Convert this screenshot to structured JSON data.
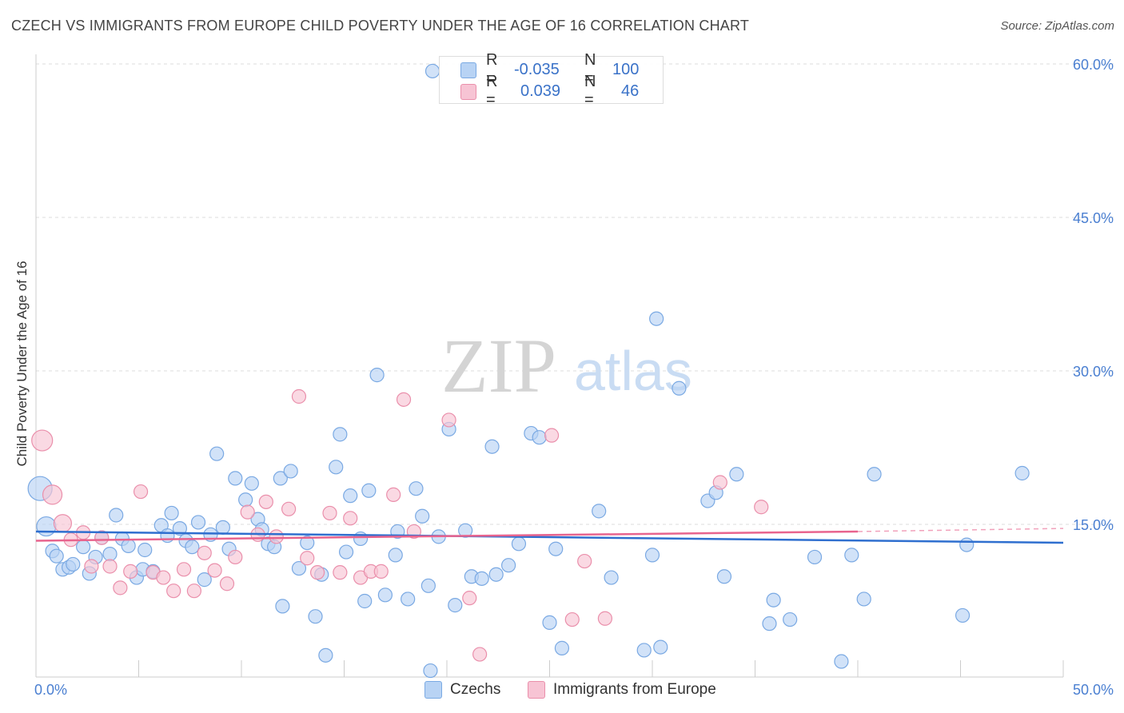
{
  "title": "CZECH VS IMMIGRANTS FROM EUROPE CHILD POVERTY UNDER THE AGE OF 16 CORRELATION CHART",
  "source": "Source: ZipAtlas.com",
  "watermark": {
    "zip": "ZIP",
    "atlas": "atlas"
  },
  "colors": {
    "blue_fill": "#b8d3f4",
    "blue_stroke": "#7aa9e3",
    "blue_line": "#2f6fcf",
    "pink_fill": "#f7c4d4",
    "pink_stroke": "#ea8fab",
    "pink_line": "#e8648e",
    "tick_text": "#4a7fd1"
  },
  "stats": {
    "czechs": {
      "r_label": "R =",
      "r_value": "-0.035",
      "n_label": "N =",
      "n_value": "100"
    },
    "immigrants": {
      "r_label": "R =",
      "r_value": "0.039",
      "n_label": "N =",
      "n_value": "46"
    }
  },
  "legend": {
    "czechs": "Czechs",
    "immigrants": "Immigrants from Europe"
  },
  "chart_data": {
    "type": "scatter",
    "title": "CZECH VS IMMIGRANTS FROM EUROPE CHILD POVERTY UNDER THE AGE OF 16 CORRELATION CHART",
    "xlabel": "",
    "ylabel": "Child Poverty Under the Age of 16",
    "xlim": [
      0,
      50
    ],
    "ylim": [
      0,
      61
    ],
    "x_tick_labels": [
      "0.0%",
      "50.0%"
    ],
    "y_ticks": [
      15,
      30,
      45,
      60
    ],
    "y_tick_labels": [
      "15.0%",
      "30.0%",
      "45.0%",
      "60.0%"
    ],
    "series": [
      {
        "name": "Czechs",
        "trend": {
          "x0": 0,
          "y0": 14.3,
          "x1": 50,
          "y1": 13.2
        },
        "points": [
          [
            0.2,
            18.5
          ],
          [
            0.5,
            14.8
          ],
          [
            0.8,
            12.4
          ],
          [
            1.0,
            11.9
          ],
          [
            1.3,
            10.6
          ],
          [
            1.6,
            10.8
          ],
          [
            1.8,
            11.1
          ],
          [
            2.3,
            12.8
          ],
          [
            2.6,
            10.2
          ],
          [
            2.9,
            11.8
          ],
          [
            3.2,
            13.7
          ],
          [
            3.6,
            12.1
          ],
          [
            3.9,
            15.9
          ],
          [
            4.2,
            13.6
          ],
          [
            4.5,
            12.9
          ],
          [
            4.9,
            9.8
          ],
          [
            5.2,
            10.6
          ],
          [
            5.3,
            12.5
          ],
          [
            5.7,
            10.4
          ],
          [
            6.1,
            14.9
          ],
          [
            6.4,
            13.9
          ],
          [
            6.6,
            16.1
          ],
          [
            7.0,
            14.6
          ],
          [
            7.3,
            13.4
          ],
          [
            7.6,
            12.8
          ],
          [
            7.9,
            15.2
          ],
          [
            8.2,
            9.6
          ],
          [
            8.5,
            14.0
          ],
          [
            8.8,
            21.9
          ],
          [
            9.1,
            14.7
          ],
          [
            9.4,
            12.6
          ],
          [
            9.7,
            19.5
          ],
          [
            10.2,
            17.4
          ],
          [
            10.5,
            19.0
          ],
          [
            10.8,
            15.5
          ],
          [
            11.0,
            14.5
          ],
          [
            11.3,
            13.1
          ],
          [
            11.6,
            12.8
          ],
          [
            11.9,
            19.5
          ],
          [
            12.0,
            7.0
          ],
          [
            12.4,
            20.2
          ],
          [
            12.8,
            10.7
          ],
          [
            13.2,
            13.2
          ],
          [
            13.6,
            6.0
          ],
          [
            13.9,
            10.1
          ],
          [
            14.1,
            2.2
          ],
          [
            14.6,
            20.6
          ],
          [
            14.8,
            23.8
          ],
          [
            15.1,
            12.3
          ],
          [
            15.3,
            17.8
          ],
          [
            15.8,
            13.6
          ],
          [
            16.0,
            7.5
          ],
          [
            16.2,
            18.3
          ],
          [
            16.6,
            29.6
          ],
          [
            17.0,
            8.1
          ],
          [
            17.5,
            12.0
          ],
          [
            17.6,
            14.3
          ],
          [
            18.1,
            7.7
          ],
          [
            18.5,
            18.5
          ],
          [
            18.8,
            15.8
          ],
          [
            19.1,
            9.0
          ],
          [
            19.2,
            0.7
          ],
          [
            19.3,
            59.3
          ],
          [
            19.6,
            13.8
          ],
          [
            20.1,
            24.3
          ],
          [
            20.4,
            7.1
          ],
          [
            20.9,
            14.4
          ],
          [
            21.2,
            9.9
          ],
          [
            21.7,
            9.7
          ],
          [
            22.2,
            22.6
          ],
          [
            22.4,
            10.1
          ],
          [
            23.0,
            11.0
          ],
          [
            23.5,
            13.1
          ],
          [
            24.1,
            23.9
          ],
          [
            24.5,
            23.5
          ],
          [
            25.0,
            5.4
          ],
          [
            25.3,
            12.6
          ],
          [
            25.6,
            2.9
          ],
          [
            27.4,
            16.3
          ],
          [
            28.0,
            9.8
          ],
          [
            29.6,
            2.7
          ],
          [
            30.0,
            12.0
          ],
          [
            30.2,
            35.1
          ],
          [
            30.4,
            3.0
          ],
          [
            31.3,
            28.3
          ],
          [
            32.7,
            17.3
          ],
          [
            33.1,
            18.1
          ],
          [
            33.5,
            9.9
          ],
          [
            34.1,
            19.9
          ],
          [
            35.7,
            5.3
          ],
          [
            35.9,
            7.6
          ],
          [
            36.7,
            5.7
          ],
          [
            37.9,
            11.8
          ],
          [
            39.2,
            1.6
          ],
          [
            39.7,
            12.0
          ],
          [
            40.3,
            7.7
          ],
          [
            40.8,
            19.9
          ],
          [
            45.1,
            6.1
          ],
          [
            45.3,
            13.0
          ],
          [
            48.0,
            20.0
          ]
        ]
      },
      {
        "name": "Immigrants from Europe",
        "trend": {
          "x0": 0,
          "y0": 13.4,
          "x1": 40,
          "y1": 14.3,
          "dash_to_x": 50,
          "dash_to_y": 14.6
        },
        "points": [
          [
            0.3,
            23.2
          ],
          [
            0.8,
            17.9
          ],
          [
            1.3,
            15.1
          ],
          [
            1.7,
            13.5
          ],
          [
            2.3,
            14.2
          ],
          [
            2.7,
            10.9
          ],
          [
            3.2,
            13.7
          ],
          [
            3.6,
            10.9
          ],
          [
            4.1,
            8.8
          ],
          [
            4.6,
            10.4
          ],
          [
            5.1,
            18.2
          ],
          [
            5.7,
            10.3
          ],
          [
            6.2,
            9.8
          ],
          [
            6.7,
            8.5
          ],
          [
            7.2,
            10.6
          ],
          [
            7.7,
            8.5
          ],
          [
            8.2,
            12.2
          ],
          [
            8.7,
            10.5
          ],
          [
            9.3,
            9.2
          ],
          [
            9.7,
            11.8
          ],
          [
            10.3,
            16.2
          ],
          [
            10.8,
            14.0
          ],
          [
            11.2,
            17.2
          ],
          [
            11.7,
            13.8
          ],
          [
            12.3,
            16.5
          ],
          [
            12.8,
            27.5
          ],
          [
            13.2,
            11.7
          ],
          [
            13.7,
            10.3
          ],
          [
            14.3,
            16.1
          ],
          [
            14.8,
            10.3
          ],
          [
            15.3,
            15.6
          ],
          [
            15.8,
            9.8
          ],
          [
            16.3,
            10.4
          ],
          [
            16.8,
            10.4
          ],
          [
            17.4,
            17.9
          ],
          [
            17.9,
            27.2
          ],
          [
            18.4,
            14.3
          ],
          [
            20.1,
            25.2
          ],
          [
            21.1,
            7.8
          ],
          [
            21.6,
            2.3
          ],
          [
            25.1,
            23.7
          ],
          [
            26.1,
            5.7
          ],
          [
            26.7,
            11.4
          ],
          [
            27.7,
            5.8
          ],
          [
            33.3,
            19.1
          ],
          [
            35.3,
            16.7
          ]
        ]
      }
    ]
  }
}
